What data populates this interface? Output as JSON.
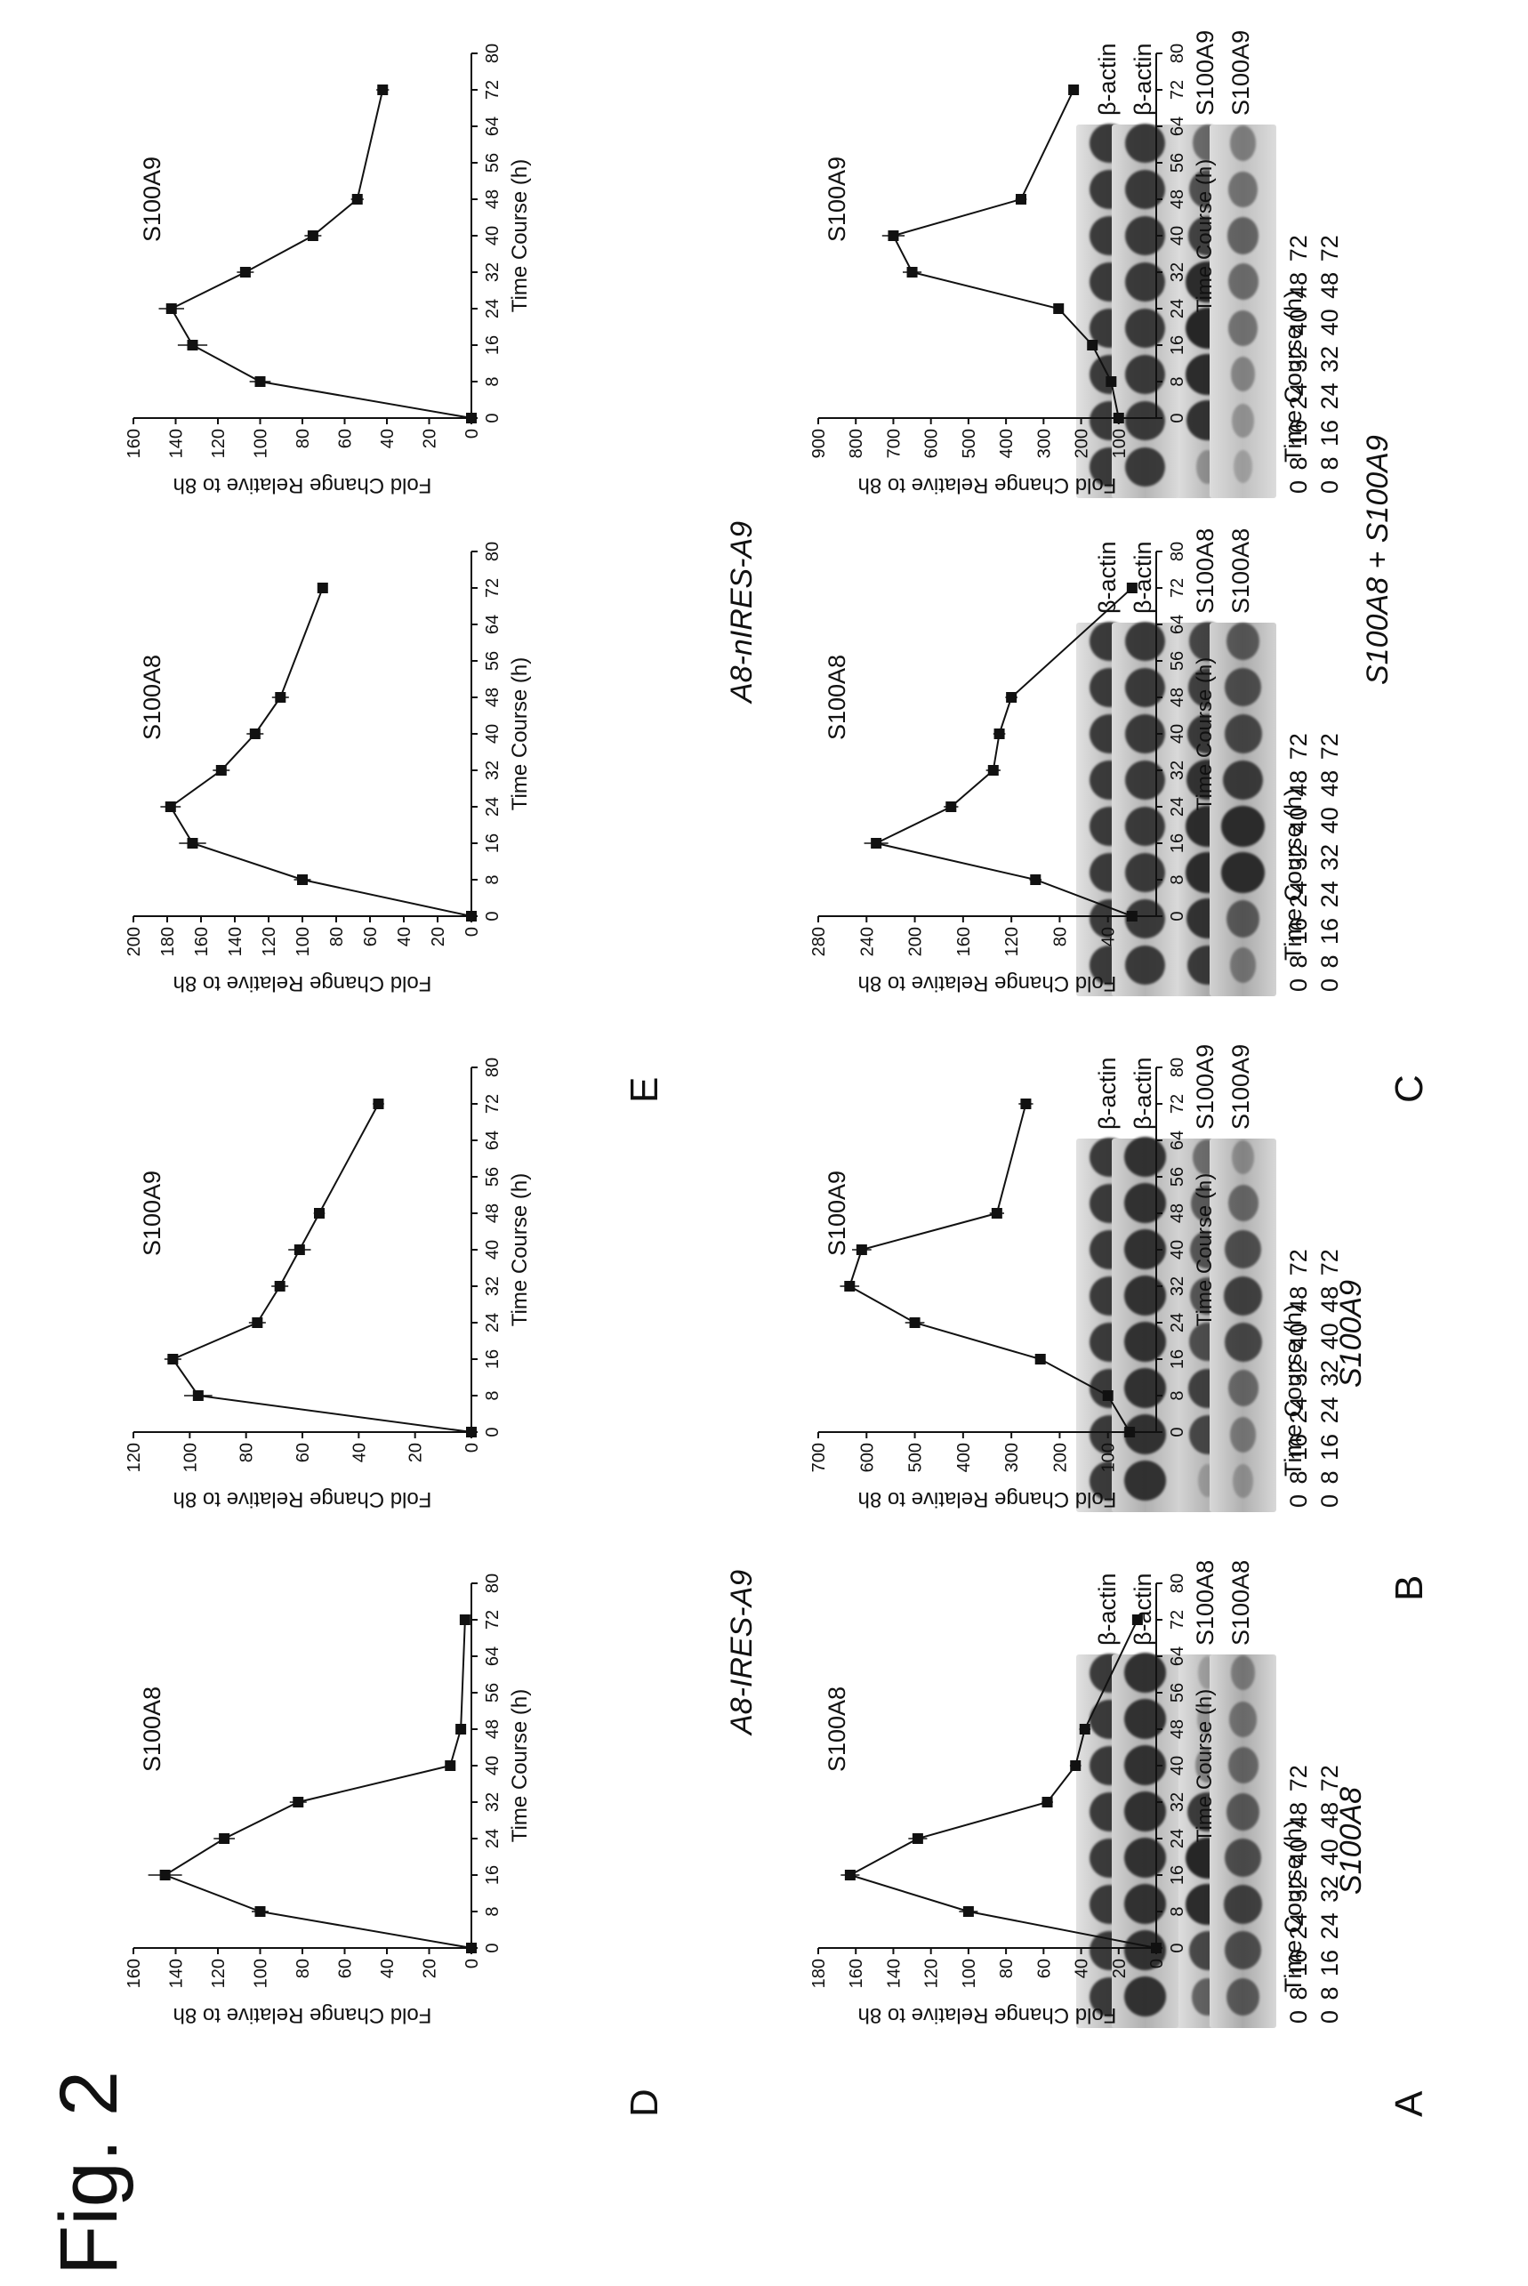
{
  "figure_title": "Fig. 2",
  "panels": [
    {
      "letter": "A",
      "title": "S100A8",
      "time_header": "Time Course (h)",
      "time_hours": "0 8 16 24 32 40 48 72",
      "blots": [
        {
          "label": "S100A8",
          "asterisk": "",
          "bg": "#e3e3e3",
          "tint": "#bcbcbc",
          "intensity": [
            0.55,
            0.75,
            0.95,
            1.0,
            0.85,
            0.3,
            0.15,
            0.1
          ]
        },
        {
          "label": "β-actin",
          "asterisk": "",
          "bg": "#e2e2e2",
          "tint": "#bdbdbd",
          "intensity": [
            0.85,
            0.85,
            0.85,
            0.85,
            0.85,
            0.85,
            0.85,
            0.85
          ]
        }
      ]
    },
    {
      "letter": "B",
      "title": "S100A9",
      "time_header": "Time Course (h)",
      "time_hours": "0 8 16 24 32 40 48 72",
      "blots": [
        {
          "label": "S100A9",
          "asterisk": "*",
          "bg": "#d8d8d8",
          "tint": "#b5b5b5",
          "intensity": [
            0.1,
            0.75,
            0.8,
            0.7,
            0.65,
            0.65,
            0.6,
            0.45
          ]
        },
        {
          "label": "β-actin",
          "asterisk": "",
          "bg": "#e2e2e2",
          "tint": "#bdbdbd",
          "intensity": [
            0.85,
            0.85,
            0.85,
            0.85,
            0.85,
            0.85,
            0.85,
            0.85
          ]
        }
      ]
    },
    {
      "letter": "C",
      "title": "S100A8 + S100A9",
      "time_header": "Time Course (h)",
      "time_hours": "0 8 16 24 32 40 48 72",
      "blots": [
        {
          "label": "S100A8",
          "asterisk": "",
          "bg": "#dedede",
          "tint": "#aaaaaa",
          "intensity": [
            0.85,
            0.9,
            0.95,
            0.95,
            0.9,
            0.85,
            0.8,
            0.75
          ]
        },
        {
          "label": "β-actin",
          "asterisk": "",
          "bg": "#e2e2e2",
          "tint": "#bdbdbd",
          "intensity": [
            0.85,
            0.85,
            0.85,
            0.85,
            0.85,
            0.85,
            0.85,
            0.85
          ]
        }
      ]
    },
    {
      "letter": "C",
      "title": "",
      "time_header": "Time Course (h)",
      "time_hours": "0 8 16 24 32 40 48 72",
      "blots": [
        {
          "label": "S100A9",
          "asterisk": "",
          "bg": "#e2e2e2",
          "tint": "#bbbbbb",
          "intensity": [
            0.2,
            0.9,
            0.95,
            1.0,
            0.95,
            0.8,
            0.7,
            0.5
          ]
        },
        {
          "label": "β-actin",
          "asterisk": "",
          "bg": "#e2e2e2",
          "tint": "#bdbdbd",
          "intensity": [
            0.85,
            0.85,
            0.85,
            0.85,
            0.85,
            0.85,
            0.85,
            0.85
          ]
        }
      ]
    },
    {
      "letter": "D",
      "title": "A8-IRES-A9",
      "time_header": "Time Course (h)",
      "time_hours": "0 8 16 24 32 40 48 72",
      "blots": [
        {
          "label": "S100A8",
          "asterisk": "",
          "bg": "#d8d8d8",
          "tint": "#aaaaaa",
          "intensity": [
            0.6,
            0.7,
            0.8,
            0.7,
            0.6,
            0.5,
            0.4,
            0.3
          ]
        },
        {
          "label": "β-actin",
          "asterisk": "",
          "bg": "#d2d2d2",
          "tint": "#b0b0b0",
          "intensity": [
            0.9,
            0.9,
            0.9,
            0.9,
            0.9,
            0.9,
            0.9,
            0.9
          ]
        }
      ]
    },
    {
      "letter": "D",
      "title": "",
      "time_header": "Time Course (h)",
      "time_hours": "0 8 16 24 32 40 48 72",
      "blots": [
        {
          "label": "S100A9",
          "asterisk": "",
          "bg": "#d8d8d8",
          "tint": "#b0b0b0",
          "intensity": [
            0.15,
            0.35,
            0.5,
            0.75,
            0.8,
            0.7,
            0.5,
            0.2
          ]
        },
        {
          "label": "β-actin",
          "asterisk": "",
          "bg": "#d2d2d2",
          "tint": "#b0b0b0",
          "intensity": [
            0.9,
            0.9,
            0.9,
            0.9,
            0.9,
            0.9,
            0.9,
            0.9
          ]
        }
      ]
    },
    {
      "letter": "E",
      "title": "A8-nIRES-A9",
      "time_header": "Time Course (h)",
      "time_hours": "0 8 16 24 32 40 48 72",
      "blots": [
        {
          "label": "S100A8",
          "asterisk": "",
          "bg": "#d2d2d2",
          "tint": "#aaaaaa",
          "intensity": [
            0.35,
            0.6,
            0.95,
            0.95,
            0.85,
            0.75,
            0.7,
            0.6
          ]
        },
        {
          "label": "β-actin",
          "asterisk": "",
          "bg": "#dadada",
          "tint": "#b5b5b5",
          "intensity": [
            0.85,
            0.85,
            0.85,
            0.85,
            0.85,
            0.85,
            0.85,
            0.85
          ]
        }
      ]
    },
    {
      "letter": "E",
      "title": "",
      "time_header": "Time Course (h)",
      "time_hours": "0 8 16 24 32 40 48 72",
      "blots": [
        {
          "label": "S100A9",
          "asterisk": "",
          "bg": "#dcdcdc",
          "tint": "#c0c0c0",
          "intensity": [
            0.1,
            0.2,
            0.3,
            0.45,
            0.5,
            0.55,
            0.45,
            0.35
          ]
        },
        {
          "label": "β-actin",
          "asterisk": "",
          "bg": "#dadada",
          "tint": "#b5b5b5",
          "intensity": [
            0.85,
            0.85,
            0.85,
            0.85,
            0.85,
            0.85,
            0.85,
            0.85
          ]
        }
      ]
    }
  ],
  "chart_data": [
    {
      "panel": "A",
      "type": "line",
      "title": "S100A8",
      "xlabel": "Time Course (h)",
      "ylabel": "Fold Change Relative to 8h",
      "xlim": [
        0,
        80
      ],
      "ylim": [
        0,
        160
      ],
      "xticks": [
        0,
        8,
        16,
        24,
        32,
        40,
        48,
        56,
        64,
        72,
        80
      ],
      "yticks": [
        0,
        20,
        40,
        60,
        80,
        100,
        120,
        140,
        160
      ],
      "x": [
        0,
        8,
        16,
        24,
        32,
        40,
        48,
        72
      ],
      "y": [
        0,
        100,
        145,
        117,
        82,
        10,
        5,
        3
      ],
      "yerr": [
        0,
        4,
        8,
        5,
        4,
        1.5,
        1,
        1
      ],
      "xerr": [
        0,
        1,
        1,
        1,
        1,
        1,
        1,
        1
      ]
    },
    {
      "panel": "B",
      "type": "line",
      "title": "S100A9",
      "xlabel": "Time Course (h)",
      "ylabel": "Fold Change Relative to 8h",
      "xlim": [
        0,
        80
      ],
      "ylim": [
        0,
        120
      ],
      "xticks": [
        0,
        8,
        16,
        24,
        32,
        40,
        48,
        56,
        64,
        72,
        80
      ],
      "yticks": [
        0,
        20,
        40,
        60,
        80,
        100,
        120
      ],
      "x": [
        0,
        8,
        16,
        24,
        32,
        40,
        48,
        72
      ],
      "y": [
        0,
        97,
        106,
        76,
        68,
        61,
        54,
        33
      ],
      "yerr": [
        0,
        5,
        3,
        3,
        3,
        4,
        2,
        2
      ],
      "xerr": [
        0,
        1,
        1,
        1,
        1,
        1,
        1,
        1
      ]
    },
    {
      "panel": "C",
      "type": "line",
      "title": "S100A8",
      "xlabel": "Time Course (h)",
      "ylabel": "Fold Change Relative to 8h",
      "xlim": [
        0,
        80
      ],
      "ylim": [
        0,
        200
      ],
      "xticks": [
        0,
        8,
        16,
        24,
        32,
        40,
        48,
        56,
        64,
        72,
        80
      ],
      "yticks": [
        0,
        20,
        40,
        60,
        80,
        100,
        120,
        140,
        160,
        180,
        200
      ],
      "x": [
        0,
        8,
        16,
        24,
        32,
        40,
        48,
        72
      ],
      "y": [
        0,
        100,
        165,
        178,
        148,
        128,
        113,
        88
      ],
      "yerr": [
        0,
        5,
        8,
        6,
        5,
        5,
        5,
        3
      ],
      "xerr": [
        0,
        1,
        1,
        1,
        1,
        1,
        1,
        1
      ]
    },
    {
      "panel": "C",
      "type": "line",
      "title": "S100A9",
      "xlabel": "Time Course (h)",
      "ylabel": "Fold Change Relative to 8h",
      "xlim": [
        0,
        80
      ],
      "ylim": [
        0,
        160
      ],
      "xticks": [
        0,
        8,
        16,
        24,
        32,
        40,
        48,
        56,
        64,
        72,
        80
      ],
      "yticks": [
        0,
        20,
        40,
        60,
        80,
        100,
        120,
        140,
        160
      ],
      "x": [
        0,
        8,
        16,
        24,
        32,
        40,
        48,
        72
      ],
      "y": [
        0,
        100,
        132,
        142,
        107,
        75,
        54,
        42
      ],
      "yerr": [
        0,
        5,
        7,
        6,
        4,
        4,
        3,
        3
      ],
      "xerr": [
        0,
        1,
        1,
        1,
        1,
        1,
        1,
        1
      ]
    },
    {
      "panel": "D",
      "type": "line",
      "title": "S100A8",
      "xlabel": "Time Course (h)",
      "ylabel": "Fold Change Relative to 8h",
      "xlim": [
        0,
        80
      ],
      "ylim": [
        0,
        180
      ],
      "xticks": [
        0,
        8,
        16,
        24,
        32,
        40,
        48,
        56,
        64,
        72,
        80
      ],
      "yticks": [
        0,
        20,
        40,
        60,
        80,
        100,
        120,
        140,
        160,
        180
      ],
      "x": [
        0,
        8,
        16,
        24,
        32,
        40,
        48,
        72
      ],
      "y": [
        0,
        100,
        163,
        127,
        58,
        43,
        38,
        10
      ],
      "yerr": [
        0,
        5,
        5,
        5,
        3,
        3,
        3,
        1
      ],
      "xerr": [
        0,
        1,
        1,
        1,
        1,
        1,
        1,
        1
      ]
    },
    {
      "panel": "D",
      "type": "line",
      "title": "S100A9",
      "xlabel": "Time Course (h)",
      "ylabel": "Fold Change Relative to 8h",
      "xlim": [
        0,
        80
      ],
      "ylim": [
        0,
        700
      ],
      "xticks": [
        0,
        8,
        16,
        24,
        32,
        40,
        48,
        56,
        64,
        72,
        80
      ],
      "yticks": [
        100,
        200,
        300,
        400,
        500,
        600,
        700
      ],
      "x": [
        0,
        8,
        16,
        24,
        32,
        40,
        48,
        72
      ],
      "y": [
        55,
        100,
        240,
        500,
        635,
        610,
        330,
        270
      ],
      "yerr": [
        0,
        5,
        10,
        20,
        20,
        20,
        15,
        15
      ],
      "xerr": [
        0,
        1,
        1,
        1,
        1,
        1,
        1,
        1
      ]
    },
    {
      "panel": "E",
      "type": "line",
      "title": "S100A8",
      "xlabel": "Time Course (h)",
      "ylabel": "Fold Change Relative to 8h",
      "xlim": [
        0,
        80
      ],
      "ylim": [
        0,
        280
      ],
      "xticks": [
        0,
        8,
        16,
        24,
        32,
        40,
        48,
        56,
        64,
        72,
        80
      ],
      "yticks": [
        40,
        80,
        120,
        160,
        200,
        240,
        280
      ],
      "x": [
        0,
        8,
        16,
        24,
        32,
        40,
        48,
        72
      ],
      "y": [
        20,
        100,
        232,
        170,
        135,
        130,
        120,
        20
      ],
      "yerr": [
        0,
        5,
        10,
        6,
        6,
        5,
        5,
        1
      ],
      "xerr": [
        0,
        1,
        1,
        1,
        1,
        1,
        1,
        1
      ]
    },
    {
      "panel": "E",
      "type": "line",
      "title": "S100A9",
      "xlabel": "Time Course (h)",
      "ylabel": "Fold Change Relative to 8h",
      "xlim": [
        0,
        80
      ],
      "ylim": [
        0,
        900
      ],
      "xticks": [
        0,
        8,
        16,
        24,
        32,
        40,
        48,
        56,
        64,
        72,
        80
      ],
      "yticks": [
        100,
        200,
        300,
        400,
        500,
        600,
        700,
        800,
        900
      ],
      "x": [
        0,
        8,
        16,
        24,
        32,
        40,
        48,
        72
      ],
      "y": [
        100,
        120,
        170,
        260,
        650,
        700,
        360,
        220
      ],
      "yerr": [
        0,
        5,
        8,
        12,
        25,
        30,
        15,
        10
      ],
      "xerr": [
        0,
        1,
        1,
        1,
        1,
        1,
        1,
        1
      ]
    }
  ]
}
